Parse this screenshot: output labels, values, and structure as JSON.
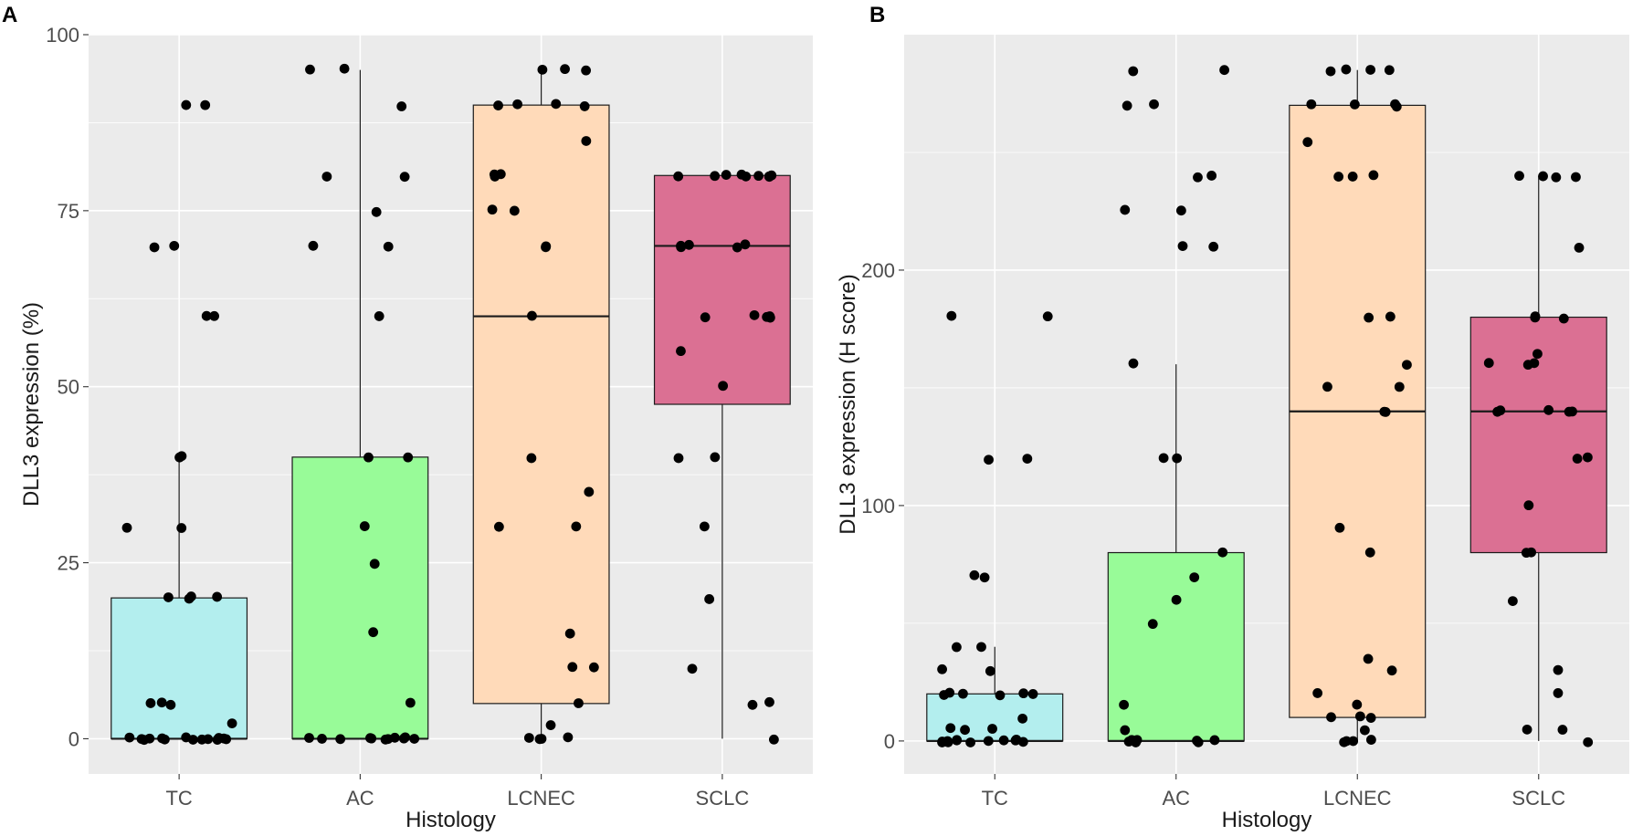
{
  "figure": {
    "panels": [
      "A",
      "B"
    ]
  },
  "chart_data": [
    {
      "panel": "A",
      "type": "box",
      "xlabel": "Histology",
      "ylabel": "DLL3 expression (%)",
      "categories": [
        "TC",
        "AC",
        "LCNEC",
        "SCLC"
      ],
      "ylim": [
        -5,
        100
      ],
      "yticks": [
        0,
        25,
        50,
        75,
        100
      ],
      "grid": true,
      "fill_colors": [
        "#b3eeee",
        "#98fb98",
        "#ffdab9",
        "#db7093"
      ],
      "boxes": [
        {
          "group": "TC",
          "q1": 0,
          "median": 0,
          "q3": 20,
          "whisker_low": 0,
          "whisker_high": 40
        },
        {
          "group": "AC",
          "q1": 0,
          "median": 0,
          "q3": 40,
          "whisker_low": 0,
          "whisker_high": 95
        },
        {
          "group": "LCNEC",
          "q1": 5,
          "median": 60,
          "q3": 90,
          "whisker_low": 0,
          "whisker_high": 95
        },
        {
          "group": "SCLC",
          "q1": 47.5,
          "median": 70,
          "q3": 80,
          "whisker_low": 0,
          "whisker_high": 80
        }
      ],
      "points": [
        {
          "group": "TC",
          "values": [
            90,
            90,
            70,
            70,
            60,
            60,
            40,
            40,
            30,
            30,
            20,
            20,
            20,
            20,
            5,
            5,
            5,
            2,
            0,
            0,
            0,
            0,
            0,
            0,
            0,
            0,
            0,
            0,
            0,
            0,
            0,
            0
          ]
        },
        {
          "group": "AC",
          "values": [
            95,
            95,
            90,
            80,
            80,
            75,
            70,
            70,
            60,
            40,
            40,
            30,
            25,
            15,
            5,
            0,
            0,
            0,
            0,
            0,
            0,
            0,
            0,
            0,
            0,
            0
          ]
        },
        {
          "group": "LCNEC",
          "values": [
            95,
            95,
            95,
            90,
            90,
            90,
            90,
            85,
            80,
            80,
            80,
            75,
            75,
            70,
            70,
            60,
            40,
            35,
            30,
            30,
            15,
            10,
            10,
            5,
            2,
            0,
            0,
            0,
            0
          ]
        },
        {
          "group": "SCLC",
          "values": [
            80,
            80,
            80,
            80,
            80,
            80,
            80,
            80,
            80,
            70,
            70,
            70,
            70,
            70,
            60,
            60,
            60,
            60,
            60,
            55,
            50,
            40,
            40,
            30,
            20,
            10,
            5,
            5,
            0
          ]
        }
      ]
    },
    {
      "panel": "B",
      "type": "box",
      "xlabel": "Histology",
      "ylabel": "DLL3 expression (H score)",
      "categories": [
        "TC",
        "AC",
        "LCNEC",
        "SCLC"
      ],
      "ylim": [
        -14,
        300
      ],
      "yticks": [
        0,
        100,
        200
      ],
      "grid": true,
      "fill_colors": [
        "#b3eeee",
        "#98fb98",
        "#ffdab9",
        "#db7093"
      ],
      "boxes": [
        {
          "group": "TC",
          "q1": 0,
          "median": 0,
          "q3": 20,
          "whisker_low": 0,
          "whisker_high": 40
        },
        {
          "group": "AC",
          "q1": 0,
          "median": 0,
          "q3": 80,
          "whisker_low": 0,
          "whisker_high": 160
        },
        {
          "group": "LCNEC",
          "q1": 10,
          "median": 140,
          "q3": 270,
          "whisker_low": 0,
          "whisker_high": 285
        },
        {
          "group": "SCLC",
          "q1": 80,
          "median": 140,
          "q3": 180,
          "whisker_low": 0,
          "whisker_high": 240
        }
      ],
      "points": [
        {
          "group": "TC",
          "values": [
            180,
            180,
            120,
            120,
            70,
            70,
            40,
            40,
            30,
            30,
            20,
            20,
            20,
            20,
            20,
            20,
            10,
            5,
            5,
            5,
            0,
            0,
            0,
            0,
            0,
            0,
            0,
            0,
            0,
            0,
            0,
            0
          ]
        },
        {
          "group": "AC",
          "values": [
            285,
            285,
            270,
            270,
            240,
            240,
            225,
            225,
            210,
            210,
            160,
            120,
            120,
            80,
            70,
            60,
            50,
            15,
            5,
            0,
            0,
            0,
            0,
            0,
            0,
            0
          ]
        },
        {
          "group": "LCNEC",
          "values": [
            285,
            285,
            285,
            285,
            270,
            270,
            270,
            270,
            255,
            240,
            240,
            240,
            180,
            180,
            160,
            150,
            150,
            140,
            140,
            90,
            80,
            35,
            30,
            20,
            15,
            10,
            10,
            10,
            5,
            0,
            0,
            0,
            0
          ]
        },
        {
          "group": "SCLC",
          "values": [
            240,
            240,
            240,
            240,
            210,
            180,
            180,
            180,
            165,
            160,
            160,
            160,
            140,
            140,
            140,
            140,
            140,
            120,
            120,
            100,
            80,
            80,
            60,
            30,
            20,
            5,
            5,
            0
          ]
        }
      ]
    }
  ]
}
